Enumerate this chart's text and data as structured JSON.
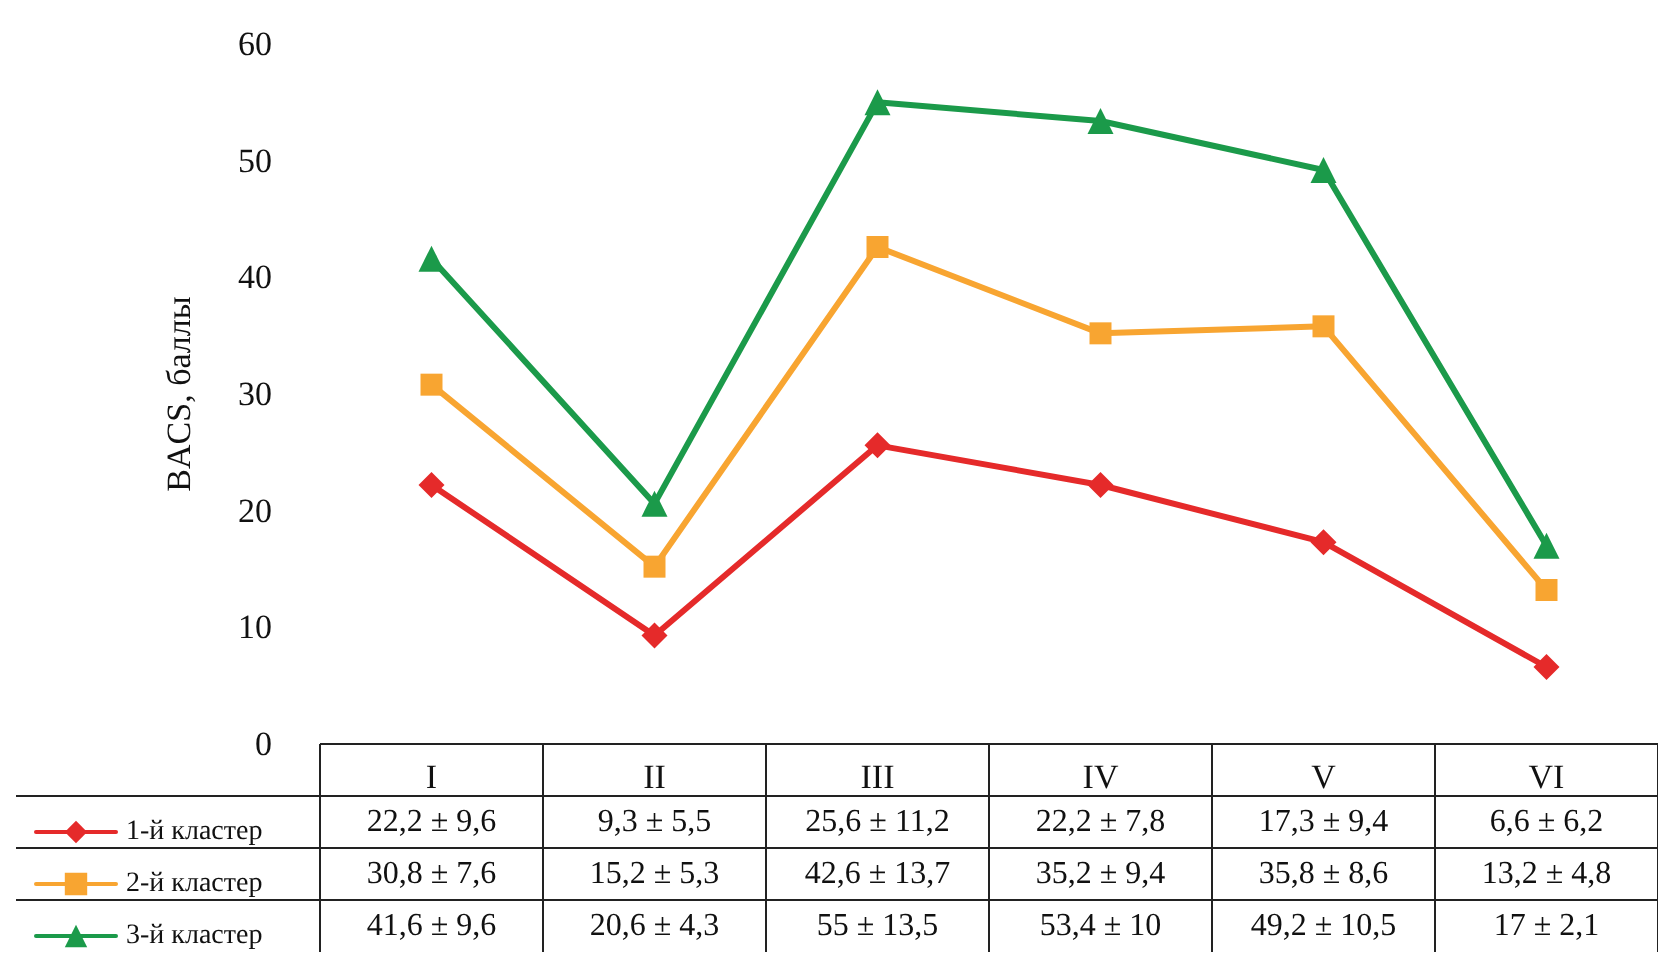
{
  "chart_data": {
    "type": "line",
    "ylabel": "BACS, баллы",
    "categories": [
      "I",
      "II",
      "III",
      "IV",
      "V",
      "VI"
    ],
    "series": [
      {
        "name": "1-й кластер",
        "color": "#e52a2a",
        "marker": "diamond",
        "values": [
          22.2,
          9.3,
          25.6,
          22.2,
          17.3,
          6.6
        ],
        "value_labels": [
          "22,2 ± 9,6",
          "9,3 ± 5,5",
          "25,6 ± 11,2",
          "22,2 ± 7,8",
          "17,3 ± 9,4",
          "6,6 ± 6,2"
        ]
      },
      {
        "name": "2-й кластер",
        "color": "#f8a531",
        "marker": "square",
        "values": [
          30.8,
          15.2,
          42.6,
          35.2,
          35.8,
          13.2
        ],
        "value_labels": [
          "30,8 ± 7,6",
          "15,2 ± 5,3",
          "42,6 ± 13,7",
          "35,2 ± 9,4",
          "35,8 ± 8,6",
          "13,2 ± 4,8"
        ]
      },
      {
        "name": "3-й кластер",
        "color": "#1b9a4a",
        "marker": "triangle",
        "values": [
          41.6,
          20.6,
          55,
          53.4,
          49.2,
          17
        ],
        "value_labels": [
          "41,6 ± 9,6",
          "20,6 ± 4,3",
          "55 ± 13,5",
          "53,4 ± 10",
          "49,2 ± 10,5",
          "17 ± 2,1"
        ]
      }
    ],
    "ylim": [
      0,
      60
    ],
    "yticks": [
      0,
      10,
      20,
      30,
      40,
      50,
      60
    ],
    "grid": false,
    "legend": "bottom left",
    "line_style": "solid"
  }
}
